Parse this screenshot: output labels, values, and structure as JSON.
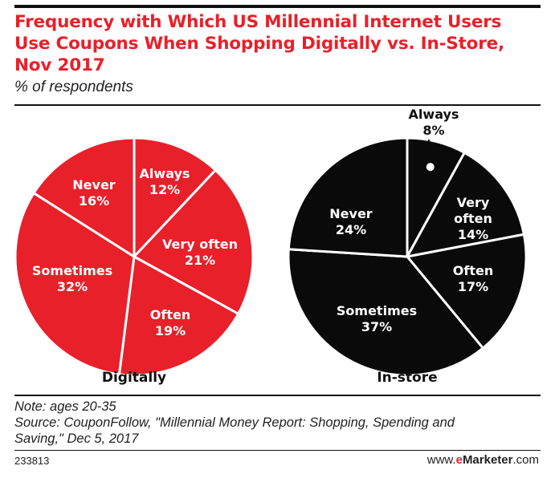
{
  "title_lines": [
    "Frequency with Which US Millennial Internet Users",
    "Use Coupons When Shopping Digitally vs. In-Store,",
    "Nov 2017"
  ],
  "subtitle": "% of respondents",
  "colors": {
    "accent": "#e8202a",
    "dark": "#0a0a0a",
    "separator": "#ffffff"
  },
  "chart_data": [
    {
      "type": "pie",
      "name": "Digitally",
      "unit": "%",
      "slices": [
        {
          "label": "Always",
          "value": 12,
          "display": "12%"
        },
        {
          "label": "Very often",
          "value": 21,
          "display": "21%"
        },
        {
          "label": "Often",
          "value": 19,
          "display": "19%"
        },
        {
          "label": "Sometimes",
          "value": 32,
          "display": "32%"
        },
        {
          "label": "Never",
          "value": 16,
          "display": "16%"
        }
      ]
    },
    {
      "type": "pie",
      "name": "In-store",
      "unit": "%",
      "slices": [
        {
          "label": "Always",
          "value": 8,
          "display": "8%"
        },
        {
          "label": "Very often",
          "value": 14,
          "display": "14%"
        },
        {
          "label": "Often",
          "value": 17,
          "display": "17%"
        },
        {
          "label": "Sometimes",
          "value": 37,
          "display": "37%"
        },
        {
          "label": "Never",
          "value": 24,
          "display": "24%"
        }
      ]
    }
  ],
  "notes": [
    "Note: ages 20-35",
    "Source: CouponFollow, \"Millennial Money Report: Shopping, Spending and",
    "Saving,\" Dec 5, 2017"
  ],
  "footer": {
    "chart_id": "233813",
    "brand_prefix": "www.",
    "brand_e": "e",
    "brand_main": "Marketer",
    "brand_suffix": ".com"
  }
}
